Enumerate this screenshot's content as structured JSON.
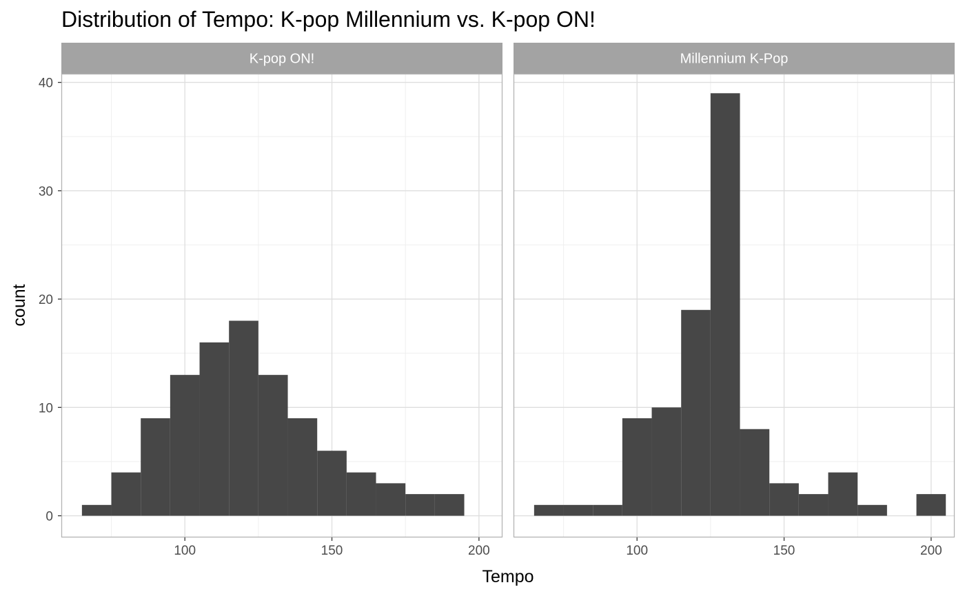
{
  "chart_data": {
    "type": "bar",
    "title": "Distribution of Tempo: K-pop Millennium vs. K-pop ON!",
    "xlabel": "Tempo",
    "ylabel": "count",
    "xlim": [
      58,
      208
    ],
    "ylim": [
      -2,
      40.8
    ],
    "x_ticks": [
      100,
      150,
      200
    ],
    "x_tick_labels": [
      "100",
      "150",
      "200"
    ],
    "y_ticks": [
      0,
      10,
      20,
      30,
      40
    ],
    "y_tick_labels": [
      "0",
      "10",
      "20",
      "30",
      "40"
    ],
    "x_minor_grid": [
      75,
      125,
      175
    ],
    "y_minor_grid": [
      5,
      15,
      25,
      35
    ],
    "bin_width": 10,
    "grid": true,
    "colors": {
      "bar": "#474747",
      "strip": "#a3a3a3",
      "grid_major": "#dedede",
      "grid_minor": "#efefef",
      "panel_border": "#b3b3b3",
      "tick_label": "#4d4d4d"
    },
    "panels": [
      {
        "name": "K-pop ON!",
        "bins": [
          {
            "x0": 65,
            "x1": 75,
            "count": 1
          },
          {
            "x0": 75,
            "x1": 85,
            "count": 4
          },
          {
            "x0": 85,
            "x1": 95,
            "count": 9
          },
          {
            "x0": 95,
            "x1": 105,
            "count": 13
          },
          {
            "x0": 105,
            "x1": 115,
            "count": 16
          },
          {
            "x0": 115,
            "x1": 125,
            "count": 18
          },
          {
            "x0": 125,
            "x1": 135,
            "count": 13
          },
          {
            "x0": 135,
            "x1": 145,
            "count": 9
          },
          {
            "x0": 145,
            "x1": 155,
            "count": 6
          },
          {
            "x0": 155,
            "x1": 165,
            "count": 4
          },
          {
            "x0": 165,
            "x1": 175,
            "count": 3
          },
          {
            "x0": 175,
            "x1": 185,
            "count": 2
          },
          {
            "x0": 185,
            "x1": 195,
            "count": 2
          }
        ]
      },
      {
        "name": "Millennium K-Pop",
        "bins": [
          {
            "x0": 65,
            "x1": 75,
            "count": 1
          },
          {
            "x0": 75,
            "x1": 85,
            "count": 1
          },
          {
            "x0": 85,
            "x1": 95,
            "count": 1
          },
          {
            "x0": 95,
            "x1": 105,
            "count": 9
          },
          {
            "x0": 105,
            "x1": 115,
            "count": 10
          },
          {
            "x0": 115,
            "x1": 125,
            "count": 19
          },
          {
            "x0": 125,
            "x1": 135,
            "count": 39
          },
          {
            "x0": 135,
            "x1": 145,
            "count": 8
          },
          {
            "x0": 145,
            "x1": 155,
            "count": 3
          },
          {
            "x0": 155,
            "x1": 165,
            "count": 2
          },
          {
            "x0": 165,
            "x1": 175,
            "count": 4
          },
          {
            "x0": 175,
            "x1": 185,
            "count": 1
          },
          {
            "x0": 195,
            "x1": 205,
            "count": 2
          }
        ]
      }
    ]
  }
}
